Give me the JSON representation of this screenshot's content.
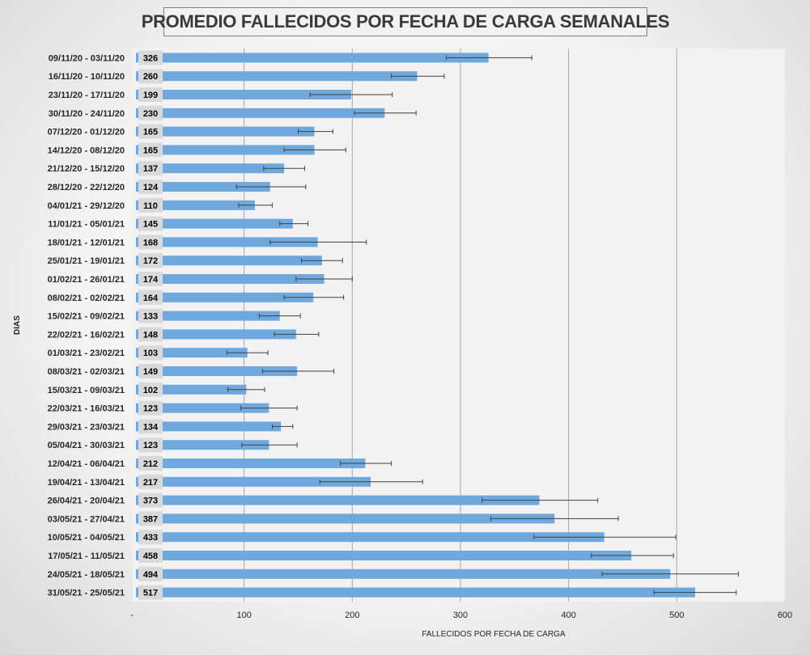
{
  "chart_data": {
    "type": "bar",
    "orientation": "horizontal",
    "title": "PROMEDIO FALLECIDOS POR FECHA DE CARGA SEMANALES",
    "xlabel": "FALLECIDOS POR FECHA DE CARGA",
    "ylabel": "DIAS",
    "xlim": [
      0,
      600
    ],
    "x_ticks": [
      "-",
      "100",
      "200",
      "300",
      "400",
      "500",
      "600"
    ],
    "grid": "vertical",
    "error_bars": true,
    "colors": {
      "bar": "#6fa8dc",
      "plot_bg": "#f2f2f2",
      "grid": "#a6a6a6",
      "label_bg": "#d9d9d9"
    },
    "categories": [
      "09/11/20 - 03/11/20",
      "16/11/20 - 10/11/20",
      "23/11/20 - 17/11/20",
      "30/11/20 - 24/11/20",
      "07/12/20 - 01/12/20",
      "14/12/20 - 08/12/20",
      "21/12/20 - 15/12/20",
      "28/12/20 - 22/12/20",
      "04/01/21 - 29/12/20",
      "11/01/21 - 05/01/21",
      "18/01/21 - 12/01/21",
      "25/01/21 - 19/01/21",
      "01/02/21 - 26/01/21",
      "08/02/21 - 02/02/21",
      "15/02/21 - 09/02/21",
      "22/02/21 - 16/02/21",
      "01/03/21 - 23/02/21",
      "08/03/21 - 02/03/21",
      "15/03/21 - 09/03/21",
      "22/03/21 - 16/03/21",
      "29/03/21 - 23/03/21",
      "05/04/21 - 30/03/21",
      "12/04/21 - 06/04/21",
      "19/04/21 - 13/04/21",
      "26/04/21 - 20/04/21",
      "03/05/21 - 27/04/21",
      "10/05/21 - 04/05/21",
      "17/05/21 - 11/05/21",
      "24/05/21 - 18/05/21",
      "31/05/21 - 25/05/21"
    ],
    "values": [
      326,
      260,
      199,
      230,
      165,
      165,
      137,
      124,
      110,
      145,
      168,
      172,
      174,
      164,
      133,
      148,
      103,
      149,
      102,
      123,
      134,
      123,
      212,
      217,
      373,
      387,
      433,
      458,
      494,
      517
    ],
    "error_low": [
      287,
      236,
      161,
      202,
      150,
      137,
      118,
      93,
      95,
      133,
      124,
      153,
      148,
      137,
      114,
      128,
      84,
      117,
      85,
      97,
      126,
      98,
      189,
      170,
      320,
      328,
      368,
      421,
      431,
      479
    ],
    "error_high": [
      366,
      285,
      237,
      259,
      182,
      194,
      156,
      157,
      126,
      159,
      213,
      191,
      200,
      192,
      152,
      169,
      122,
      183,
      119,
      149,
      145,
      149,
      236,
      265,
      427,
      446,
      499,
      497,
      557,
      555
    ]
  }
}
